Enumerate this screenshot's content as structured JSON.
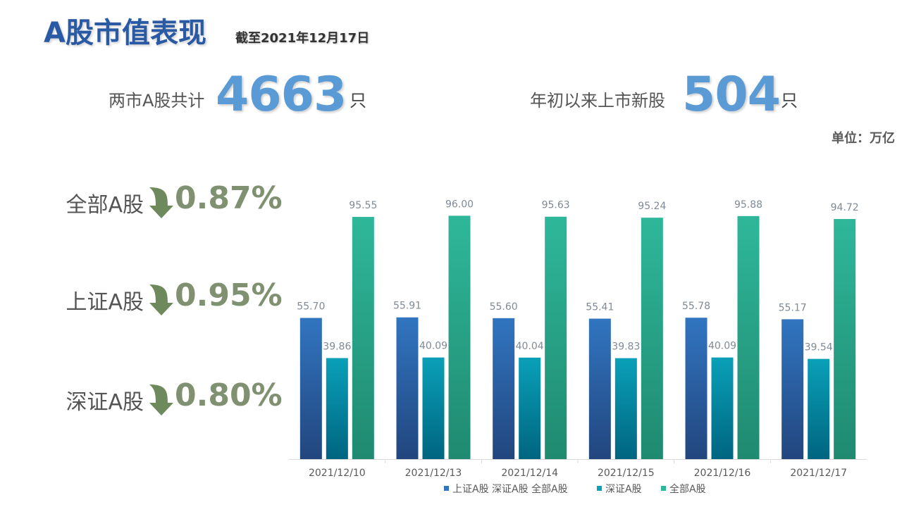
{
  "header": {
    "title": "A股市值表现",
    "subtitle": "截至2021年12月17日"
  },
  "stats": [
    {
      "label": "两市A股共计",
      "value": "4663",
      "unit": "只"
    },
    {
      "label": "年初以来上市新股",
      "value": "504",
      "unit": "只"
    }
  ],
  "unit_note": "单位：万亿",
  "changes": [
    {
      "label": "全部A股",
      "value": "0.87%",
      "direction": "down"
    },
    {
      "label": "上证A股",
      "value": "0.95%",
      "direction": "down"
    },
    {
      "label": "深证A股",
      "value": "0.80%",
      "direction": "down"
    }
  ],
  "colors": {
    "title": "#2a5aa3",
    "stat_number": "#5b9bd5",
    "change_value": "#7f9170",
    "arrow": "#6e8a5c"
  },
  "chart_data": {
    "type": "bar",
    "categories": [
      "2021/12/10",
      "2021/12/13",
      "2021/12/14",
      "2021/12/15",
      "2021/12/16",
      "2021/12/17"
    ],
    "series": [
      {
        "name": "上证A股",
        "values": [
          55.7,
          55.91,
          55.6,
          55.41,
          55.78,
          55.17
        ],
        "color_top": "#3175c0",
        "color_bottom": "#22467e"
      },
      {
        "name": "深证A股",
        "values": [
          39.86,
          40.09,
          40.04,
          39.83,
          40.09,
          39.54
        ],
        "color_top": "#0aa0b8",
        "color_bottom": "#006580"
      },
      {
        "name": "全部A股",
        "values": [
          95.55,
          96.0,
          95.63,
          95.24,
          95.88,
          94.72
        ],
        "color_top": "#2fb79a",
        "color_bottom": "#1f8a70"
      }
    ],
    "legend_display_names": [
      "上证A股 深证A股 全部A股",
      "深证A股",
      "全部A股"
    ],
    "ylim": [
      0,
      100
    ],
    "grid": false,
    "legend_position": "bottom"
  }
}
